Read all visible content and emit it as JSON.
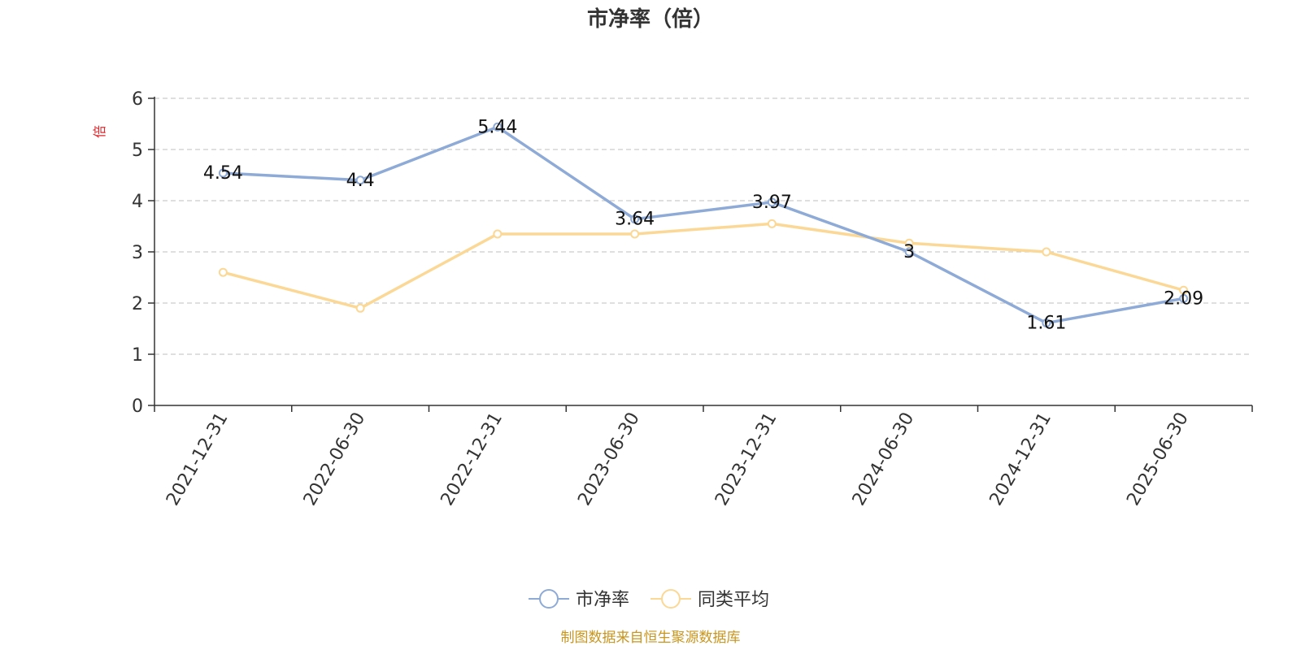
{
  "chart_data": {
    "type": "line",
    "title": "市净率（倍）",
    "y_unit": "倍",
    "categories": [
      "2021-12-31",
      "2022-06-30",
      "2022-12-31",
      "2023-06-30",
      "2023-12-31",
      "2024-06-30",
      "2024-12-31",
      "2025-06-30"
    ],
    "ylim": [
      0,
      6
    ],
    "yticks": [
      0,
      1,
      2,
      3,
      4,
      5,
      6
    ],
    "grid": true,
    "legend_position": "bottom",
    "series": [
      {
        "name": "市净率",
        "color": "#8eaad6",
        "values": [
          4.54,
          4.4,
          5.44,
          3.64,
          3.97,
          3.0,
          1.61,
          2.09
        ],
        "labels": [
          "4.54",
          "4.4",
          "5.44",
          "3.64",
          "3.97",
          "3",
          "1.61",
          "2.09"
        ]
      },
      {
        "name": "同类平均",
        "color": "#fbd895",
        "values": [
          2.6,
          1.9,
          3.35,
          3.35,
          3.55,
          3.17,
          3.0,
          2.25
        ]
      }
    ],
    "source": "制图数据来自恒生聚源数据库"
  }
}
